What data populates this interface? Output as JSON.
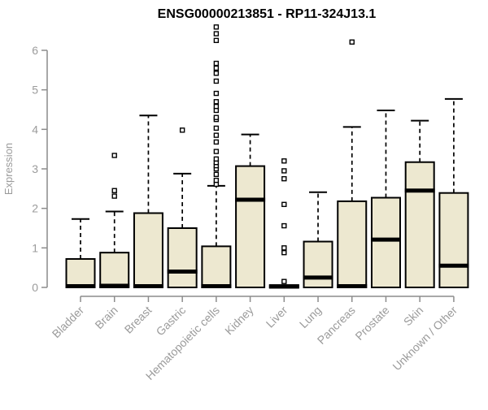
{
  "chart_data": {
    "type": "boxplot",
    "title": "ENSG00000213851 - RP11-324J13.1",
    "ylabel": "Expression",
    "xlabel": "",
    "ylim": [
      0,
      6.6
    ],
    "yticks": [
      0,
      1,
      2,
      3,
      4,
      5,
      6
    ],
    "grid": false,
    "legend": false,
    "categories": [
      "Bladder",
      "Brain",
      "Breast",
      "Gastric",
      "Hematopoietic cells",
      "Kidney",
      "Liver",
      "Lung",
      "Pancreas",
      "Prostate",
      "Skin",
      "Unknown / Other"
    ],
    "boxes": [
      {
        "category": "Bladder",
        "low": 0,
        "q1": 0,
        "median": 0.03,
        "q3": 0.72,
        "high": 1.73,
        "outliers": []
      },
      {
        "category": "Brain",
        "low": 0,
        "q1": 0,
        "median": 0.04,
        "q3": 0.88,
        "high": 1.92,
        "outliers": [
          2.31,
          2.45,
          3.34
        ]
      },
      {
        "category": "Breast",
        "low": 0,
        "q1": 0,
        "median": 0.03,
        "q3": 1.88,
        "high": 4.35,
        "outliers": []
      },
      {
        "category": "Gastric",
        "low": 0,
        "q1": 0,
        "median": 0.4,
        "q3": 1.5,
        "high": 2.88,
        "outliers": [
          3.98
        ]
      },
      {
        "category": "Hematopoietic cells",
        "low": 0,
        "q1": 0,
        "median": 0.03,
        "q3": 1.04,
        "high": 2.57,
        "outliers": [
          2.61,
          2.71,
          2.86,
          3.0,
          3.08,
          3.16,
          3.25,
          3.44,
          3.68,
          3.85,
          4.03,
          4.25,
          4.3,
          4.48,
          4.58,
          4.7,
          4.91,
          5.22,
          5.42,
          5.55,
          5.67,
          6.25,
          6.42,
          6.59
        ]
      },
      {
        "category": "Kidney",
        "low": 0,
        "q1": 0,
        "median": 2.22,
        "q3": 3.07,
        "high": 3.87,
        "outliers": []
      },
      {
        "category": "Liver",
        "low": 0,
        "q1": 0,
        "median": 0.02,
        "q3": 0.06,
        "high": 0.06,
        "outliers": [
          0.15,
          0.88,
          1.0,
          1.56,
          2.1,
          2.75,
          2.95,
          3.2
        ]
      },
      {
        "category": "Lung",
        "low": 0,
        "q1": 0,
        "median": 0.25,
        "q3": 1.16,
        "high": 2.41,
        "outliers": []
      },
      {
        "category": "Pancreas",
        "low": 0,
        "q1": 0,
        "median": 0.03,
        "q3": 2.18,
        "high": 4.06,
        "outliers": [
          6.21
        ]
      },
      {
        "category": "Prostate",
        "low": 0,
        "q1": 0,
        "median": 1.21,
        "q3": 2.27,
        "high": 4.48,
        "outliers": []
      },
      {
        "category": "Skin",
        "low": 0,
        "q1": 0,
        "median": 2.45,
        "q3": 3.17,
        "high": 4.22,
        "outliers": []
      },
      {
        "category": "Unknown / Other",
        "low": 0,
        "q1": 0,
        "median": 0.55,
        "q3": 2.39,
        "high": 4.77,
        "outliers": []
      }
    ],
    "colors": {
      "box_fill": "#EDE8D0",
      "box_border": "#000000",
      "median": "#000000",
      "axis": "#8c8c8c",
      "tick_text": "#9b9b9b",
      "title_text": "#000000",
      "background": "#ffffff"
    }
  }
}
